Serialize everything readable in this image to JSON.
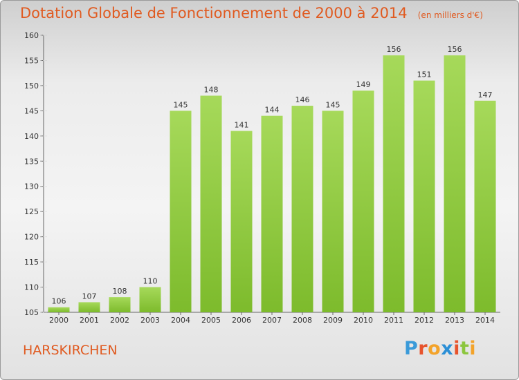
{
  "chart_data": {
    "type": "bar",
    "title": "Dotation Globale de Fonctionnement de 2000 à 2014",
    "unit_note": "(en milliers d'€)",
    "categories": [
      "2000",
      "2001",
      "2002",
      "2003",
      "2004",
      "2005",
      "2006",
      "2007",
      "2008",
      "2009",
      "2010",
      "2011",
      "2012",
      "2013",
      "2014"
    ],
    "values": [
      106,
      107,
      108,
      110,
      145,
      148,
      141,
      144,
      146,
      145,
      149,
      156,
      151,
      156,
      147
    ],
    "ylim": [
      105,
      160
    ],
    "yticks": [
      105,
      110,
      115,
      120,
      125,
      130,
      135,
      140,
      145,
      150,
      155,
      160
    ],
    "grid": false,
    "legend": "none",
    "bar_color": "#7dbb2c",
    "bar_color_light": "#a6d95a"
  },
  "location": "HARSKIRCHEN",
  "logo": {
    "letters": [
      "P",
      "r",
      "o",
      "x",
      "i",
      "t",
      "i"
    ],
    "colors": [
      "#3a9ad9",
      "#e7542d",
      "#f3a32a",
      "#2b8fd6",
      "#e7542d",
      "#8cc63e",
      "#f3a32a"
    ]
  }
}
